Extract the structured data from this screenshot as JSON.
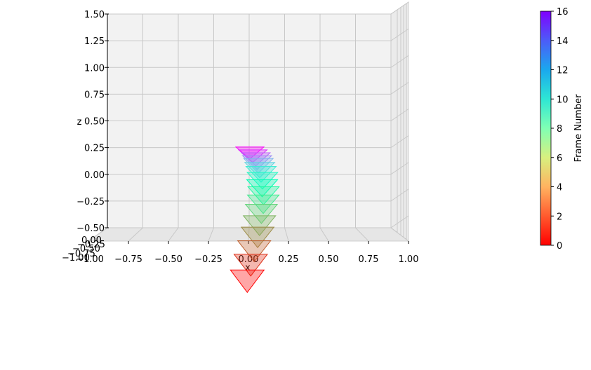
{
  "chart_data": {
    "type": "3d-scatter",
    "xlabel": "x",
    "ylabel": "",
    "zlabel": "z",
    "xlim": [
      -1.0,
      1.0
    ],
    "zlim": [
      -0.5,
      1.5
    ],
    "x_ticks": [
      "−1.00",
      "−0.75",
      "−0.50",
      "−0.25",
      "0.00",
      "0.25",
      "0.50",
      "0.75",
      "1.00"
    ],
    "z_ticks": [
      "−0.50",
      "−0.25",
      "0.00",
      "0.25",
      "0.50",
      "0.75",
      "1.00",
      "1.25",
      "1.50"
    ],
    "grid": true,
    "marker": "inverted-triangle",
    "colorbar": {
      "label": "Frame Number",
      "range": [
        0,
        16
      ],
      "ticks": [
        "0",
        "2",
        "4",
        "6",
        "8",
        "10",
        "12",
        "14",
        "16"
      ],
      "colormap": "rainbow"
    },
    "frames": [
      {
        "frame": 0,
        "x": 0.0,
        "z": 0.2
      },
      {
        "frame": 1,
        "x": 0.02,
        "z": 0.17
      },
      {
        "frame": 2,
        "x": 0.04,
        "z": 0.14
      },
      {
        "frame": 3,
        "x": 0.05,
        "z": 0.11
      },
      {
        "frame": 4,
        "x": 0.06,
        "z": 0.08
      },
      {
        "frame": 5,
        "x": 0.07,
        "z": 0.04
      },
      {
        "frame": 6,
        "x": 0.08,
        "z": 0.0
      },
      {
        "frame": 7,
        "x": 0.09,
        "z": -0.06
      },
      {
        "frame": 8,
        "x": 0.09,
        "z": -0.13
      },
      {
        "frame": 9,
        "x": 0.1,
        "z": -0.2
      },
      {
        "frame": 10,
        "x": 0.1,
        "z": -0.28
      },
      {
        "frame": 11,
        "x": 0.09,
        "z": -0.37
      },
      {
        "frame": 12,
        "x": 0.08,
        "z": -0.48
      },
      {
        "frame": 13,
        "x": 0.07,
        "z": -0.59
      },
      {
        "frame": 14,
        "x": 0.05,
        "z": -0.72
      },
      {
        "frame": 15,
        "x": 0.03,
        "z": -0.85
      },
      {
        "frame": 16,
        "x": 0.01,
        "z": -1.0
      }
    ]
  }
}
